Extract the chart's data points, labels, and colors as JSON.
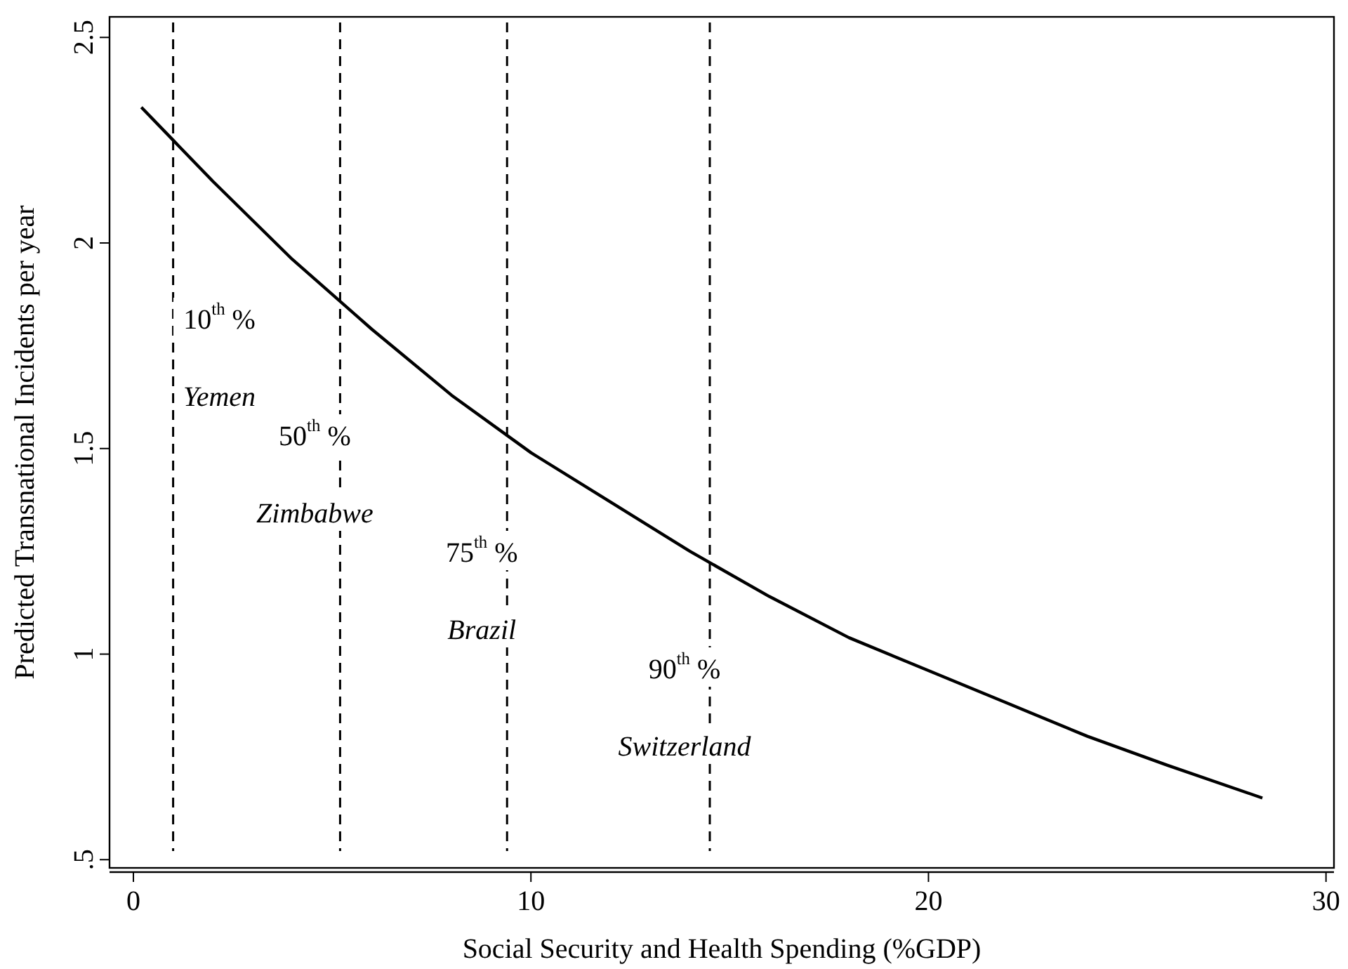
{
  "chart_data": {
    "type": "line",
    "xlabel": "Social Security and Health Spending (%GDP)",
    "ylabel": "Predicted Transnational Incidents per year",
    "x": [
      0.2,
      1,
      2,
      4,
      6,
      8,
      10,
      12,
      14,
      16,
      18,
      20,
      22,
      24,
      26,
      28.4
    ],
    "series": [
      {
        "color": "#000000",
        "values": [
          2.33,
          2.25,
          2.15,
          1.96,
          1.79,
          1.63,
          1.49,
          1.37,
          1.25,
          1.14,
          1.04,
          0.96,
          0.88,
          0.8,
          0.73,
          0.65
        ]
      }
    ],
    "xlim": [
      -0.6,
      30.2
    ],
    "xticks": [
      0,
      10,
      20,
      30
    ],
    "ylim": [
      0.48,
      2.55
    ],
    "yticks": [
      {
        "value": 0.5,
        "label": ".5"
      },
      1,
      1.5,
      2,
      2.5
    ],
    "grid": false,
    "marker": "none",
    "line_style": "solid",
    "ref_lines": [
      {
        "axis": "x",
        "value": 1.0,
        "line_style": "dashed",
        "color": "#000000",
        "label": "10$^{th}$ %\nYemen"
      },
      {
        "axis": "x",
        "value": 5.2,
        "line_style": "dashed",
        "color": "#000000",
        "label": "50$^{th}$ %\nZimbabwe"
      },
      {
        "axis": "x",
        "value": 9.4,
        "line_style": "dashed",
        "color": "#000000",
        "label": "75$^{th}$ %\nBrazil"
      },
      {
        "axis": "x",
        "value": 14.5,
        "line_style": "dashed",
        "color": "#000000",
        "label": "90$^{th}$ %\nSwitzerland"
      }
    ]
  }
}
